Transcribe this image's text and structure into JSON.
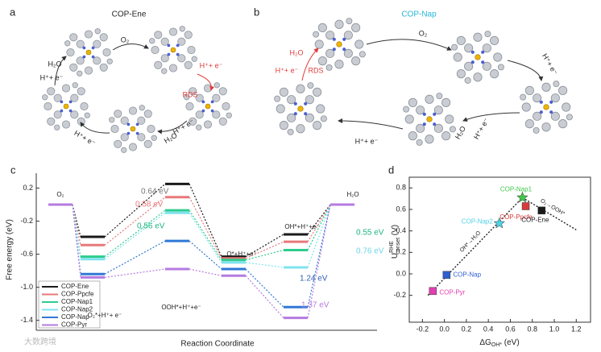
{
  "panel_a": {
    "label": "a",
    "title": "COP-Ene",
    "annotations": [
      {
        "text": "O₂",
        "color": "#222"
      },
      {
        "text": "H⁺+ e⁻",
        "color": "#e03c3c"
      },
      {
        "text": "RDS",
        "color": "#e03c3c"
      },
      {
        "text": "H⁺+ e⁻",
        "color": "#222"
      },
      {
        "text": "H₂O",
        "color": "#222"
      },
      {
        "text": "H⁺+ e⁻",
        "color": "#222"
      },
      {
        "text": "H₂O",
        "color": "#222"
      },
      {
        "text": "H⁺+ e⁻",
        "color": "#222"
      }
    ]
  },
  "panel_b": {
    "label": "b",
    "title": "COP-Nap",
    "title_color": "#29b6d6",
    "annotations": [
      {
        "text": "O₂",
        "color": "#222"
      },
      {
        "text": "H⁺+ e⁻",
        "color": "#222"
      },
      {
        "text": "H₂O",
        "color": "#e03c3c"
      },
      {
        "text": "H⁺+ e⁻",
        "color": "#e03c3c"
      },
      {
        "text": "RDS",
        "color": "#e03c3c"
      },
      {
        "text": "H⁺+ e⁻",
        "color": "#222"
      },
      {
        "text": "H₂O",
        "color": "#222"
      },
      {
        "text": "H⁺+ e⁻",
        "color": "#222"
      }
    ]
  },
  "chart_data": [
    {
      "type": "energy-levels",
      "label": "c",
      "x_label": "Reaction Coordinate",
      "y_label": "Free energy (eV)",
      "categories": [
        "O₂",
        "O₂*+H⁺+ e⁻",
        "OOH*+H⁺+e⁻",
        "O*+H⁺+e⁻",
        "OH*+H⁺+e⁻",
        "H₂O"
      ],
      "ylim": [
        -1.52,
        0.38
      ],
      "yticks": [
        0.2,
        -0.2,
        -0.6,
        {
          "value": -1,
          "label": "-1.0"
        },
        -1.4
      ],
      "series": [
        {
          "name": "COP-Ene",
          "color": "#1a1a1a",
          "values": [
            0,
            -0.39,
            0.25,
            -0.63,
            -0.36,
            0
          ]
        },
        {
          "name": "COP-Ppcfe",
          "color": "#e8787a",
          "values": [
            0,
            -0.49,
            0.09,
            -0.65,
            -0.45,
            0
          ]
        },
        {
          "name": "COP-Nap1",
          "color": "#2ecc8e",
          "values": [
            0,
            -0.63,
            -0.07,
            -0.67,
            -0.55,
            0
          ]
        },
        {
          "name": "COP-Nap2",
          "color": "#7fe3ee",
          "values": [
            0,
            -0.66,
            -0.1,
            -0.7,
            -0.76,
            0
          ]
        },
        {
          "name": "COP-Nap",
          "color": "#2f78d6",
          "values": [
            0,
            -0.84,
            -0.44,
            -0.78,
            -1.24,
            0
          ]
        },
        {
          "name": "COP-Pyr",
          "color": "#b57be0",
          "values": [
            0,
            -0.88,
            -0.78,
            -0.86,
            -1.37,
            0
          ]
        }
      ],
      "annotations": [
        {
          "text": "0.64 eV",
          "color": "#777"
        },
        {
          "text": "0.58 eV",
          "color": "#e8787a"
        },
        {
          "text": "0.56 eV",
          "color": "#1fb57d"
        },
        {
          "text": "0.55 eV",
          "color": "#1fb57d"
        },
        {
          "text": "0.76 eV",
          "color": "#6fd3e6"
        },
        {
          "text": "1.24 eV",
          "color": "#2f5fb0"
        },
        {
          "text": "1.37 eV",
          "color": "#b57be0"
        }
      ]
    },
    {
      "type": "scatter",
      "label": "d",
      "x_label": {
        "main": "ΔG",
        "sub": "OH*",
        "unit": " (eV)"
      },
      "y_label": {
        "main": "U",
        "sup": "RHE",
        "sub": "onset",
        "unit": " (V)"
      },
      "xlim": [
        -0.32,
        1.33
      ],
      "ylim": [
        -0.45,
        0.9
      ],
      "xticks": [
        -0.2,
        {
          "value": 0,
          "label": "0.0"
        },
        0.2,
        0.4,
        0.6,
        0.8,
        {
          "value": 1,
          "label": "1.0"
        },
        1.2
      ],
      "yticks": [
        -0.2,
        {
          "value": 0,
          "label": "0.0"
        },
        0.2,
        0.4,
        0.6,
        0.8
      ],
      "series": [
        {
          "name": "COP-Nap1",
          "color": "#3ec84a",
          "marker": "star",
          "x": [
            0.71
          ],
          "y": [
            0.71
          ]
        },
        {
          "name": "COP-Ppcfe",
          "color": "#d93a3a",
          "marker": "square",
          "x": [
            0.74
          ],
          "y": [
            0.63
          ]
        },
        {
          "name": "COP-Nap2",
          "color": "#4fd1e6",
          "marker": "star",
          "x": [
            0.5
          ],
          "y": [
            0.47
          ]
        },
        {
          "name": "COP-Ene",
          "color": "#1a1a1a",
          "marker": "square",
          "x": [
            0.885
          ],
          "y": [
            0.59
          ]
        },
        {
          "name": "COP-Nap",
          "color": "#2f5fd0",
          "marker": "square",
          "x": [
            0.02
          ],
          "y": [
            -0.01
          ]
        },
        {
          "name": "COP-Pyr",
          "color": "#e040b0",
          "marker": "square",
          "x": [
            -0.105
          ],
          "y": [
            -0.16
          ]
        }
      ],
      "lines": [
        {
          "name": "OH*→H₂O",
          "x": [
            -0.15,
            0.71
          ],
          "y": [
            -0.2,
            0.71
          ]
        },
        {
          "name": "O₂→OOH*",
          "x": [
            0.71,
            1.2
          ],
          "y": [
            0.71,
            0.41
          ]
        }
      ]
    }
  ],
  "watermark": "大数跨境"
}
